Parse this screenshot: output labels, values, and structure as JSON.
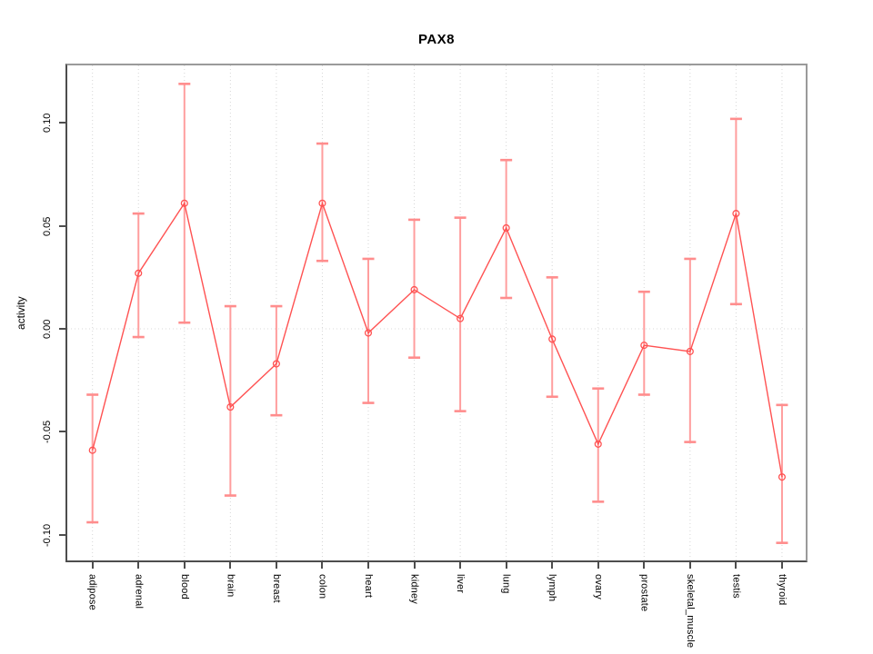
{
  "title": "PAX8",
  "chart_data": {
    "type": "line",
    "title": "PAX8",
    "xlabel": "",
    "ylabel": "activity",
    "ylim": [
      -0.113,
      0.129
    ],
    "yticks": [
      -0.1,
      -0.05,
      0.0,
      0.05,
      0.1
    ],
    "ytick_labels": [
      "-0.10",
      "-0.05",
      "0.00",
      "0.05",
      "0.10"
    ],
    "grid": "vertical dotted gridline at each category; horizontal dotted line at 0",
    "legend": "none",
    "marker": "open-circle",
    "categories": [
      "adipose",
      "adrenal",
      "blood",
      "brain",
      "breast",
      "colon",
      "heart",
      "kidney",
      "liver",
      "lung",
      "lymph",
      "ovary",
      "prostate",
      "skeletal_muscle",
      "testis",
      "thyroid"
    ],
    "series": [
      {
        "name": "activity",
        "values": [
          -0.059,
          0.027,
          0.061,
          -0.038,
          -0.017,
          0.061,
          -0.002,
          0.019,
          0.005,
          0.049,
          -0.005,
          -0.056,
          -0.008,
          -0.011,
          0.056,
          -0.072
        ],
        "error_low": [
          -0.094,
          -0.004,
          0.003,
          -0.081,
          -0.042,
          0.033,
          -0.036,
          -0.014,
          -0.04,
          0.015,
          -0.033,
          -0.084,
          -0.032,
          -0.055,
          0.012,
          -0.104
        ],
        "error_high": [
          -0.032,
          0.056,
          0.119,
          0.011,
          0.011,
          0.09,
          0.034,
          0.053,
          0.054,
          0.082,
          0.025,
          -0.029,
          0.018,
          0.034,
          0.102,
          -0.037
        ]
      }
    ]
  },
  "colors": {
    "line": "#ff5252",
    "point": "#ff5252",
    "error_bar": "#ff9e9e",
    "error_cap": "#ff8d8d",
    "gridline": "#d6d6d6",
    "zero_line": "#d9d9d9",
    "axis": "#4d4d4d",
    "box": "#9a9a9a",
    "background": "#ffffff",
    "text": "#000000"
  }
}
